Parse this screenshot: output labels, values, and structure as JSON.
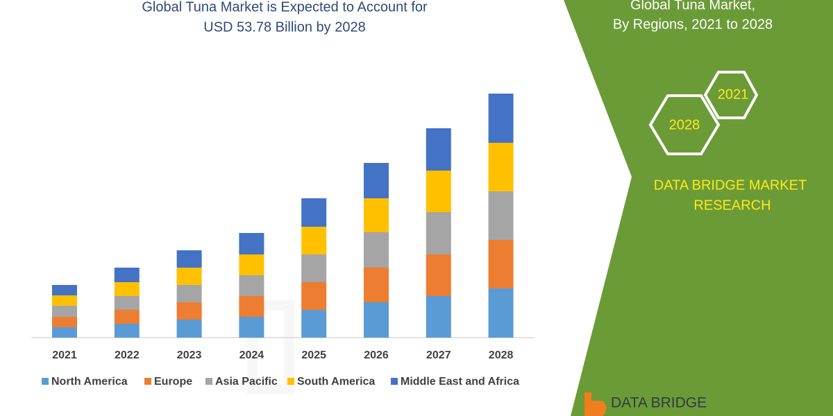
{
  "chart_data": {
    "type": "stacked-bar",
    "title": [
      "Global Tuna Market is Expected to Account for",
      "USD 53.78 Billion by 2028"
    ],
    "categories": [
      "2021",
      "2022",
      "2023",
      "2024",
      "2025",
      "2026",
      "2027",
      "2028"
    ],
    "series": [
      {
        "name": "North America",
        "color": "#5b9bd5",
        "values": [
          15,
          20,
          26,
          30,
          40,
          51,
          60,
          71
        ]
      },
      {
        "name": "Europe",
        "color": "#ed7d31",
        "values": [
          15,
          20,
          25,
          30,
          40,
          50,
          60,
          70
        ]
      },
      {
        "name": "Asia Pacific",
        "color": "#a5a5a5",
        "values": [
          16,
          20,
          25,
          30,
          40,
          51,
          61,
          70
        ]
      },
      {
        "name": "South America",
        "color": "#ffc000",
        "values": [
          15,
          20,
          25,
          30,
          40,
          49,
          60,
          70
        ]
      },
      {
        "name": "Middle East and Africa",
        "color": "#4472c4",
        "values": [
          15,
          21,
          25,
          31,
          41,
          51,
          61,
          71
        ]
      }
    ]
  },
  "panel": {
    "heading": [
      "Global Tuna Market,",
      "By Regions, 2021 to 2028"
    ],
    "hex_labels": [
      "2021",
      "2028"
    ],
    "brand": [
      "DATA BRIDGE MARKET",
      "RESEARCH"
    ],
    "logo": "DATA BRIDGE"
  }
}
